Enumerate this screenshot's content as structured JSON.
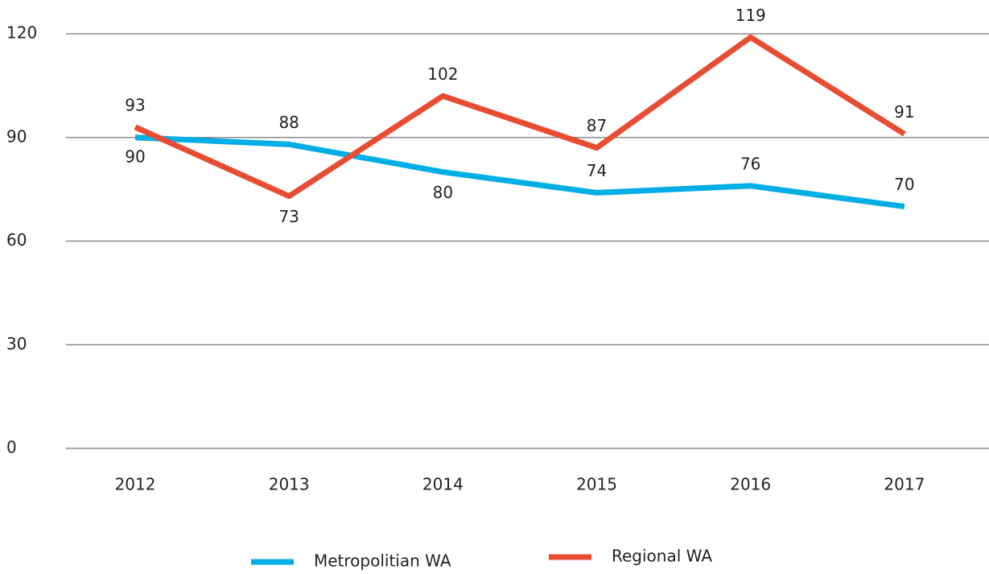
{
  "chart_data": {
    "type": "line",
    "categories": [
      "2012",
      "2013",
      "2014",
      "2015",
      "2016",
      "2017"
    ],
    "series": [
      {
        "name": "Metropolitian WA",
        "color": "#00aee6",
        "values": [
          90,
          88,
          80,
          74,
          76,
          70
        ]
      },
      {
        "name": "Regional WA",
        "color": "#e84c33",
        "values": [
          93,
          73,
          102,
          87,
          119,
          91
        ]
      }
    ],
    "ylim": [
      0,
      120
    ],
    "yticks": [
      0,
      30,
      60,
      90,
      120
    ],
    "grid": true,
    "legend": "bottom"
  }
}
